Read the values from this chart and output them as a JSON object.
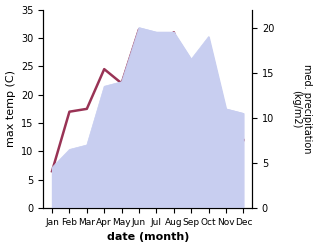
{
  "months": [
    "Jan",
    "Feb",
    "Mar",
    "Apr",
    "May",
    "Jun",
    "Jul",
    "Aug",
    "Sep",
    "Oct",
    "Nov",
    "Dec"
  ],
  "max_temp": [
    6.5,
    17.0,
    17.5,
    24.5,
    22.0,
    31.5,
    28.0,
    31.0,
    22.0,
    18.0,
    12.0,
    12.0
  ],
  "precipitation": [
    4.5,
    6.5,
    7.0,
    13.5,
    14.0,
    20.0,
    19.5,
    19.5,
    16.5,
    19.0,
    11.0,
    10.5
  ],
  "temp_color": "#993355",
  "precip_fill_color": "#c8cef0",
  "precip_edge_color": "#c8cef0",
  "background_color": "#ffffff",
  "xlabel": "date (month)",
  "ylabel_left": "max temp (C)",
  "ylabel_right": "med. precipitation\n(kg/m2)",
  "ylim_left": [
    0,
    35
  ],
  "ylim_right": [
    0,
    22
  ],
  "yticks_left": [
    0,
    5,
    10,
    15,
    20,
    25,
    30,
    35
  ],
  "yticks_right": [
    0,
    5,
    10,
    15,
    20
  ],
  "line_width": 1.8
}
